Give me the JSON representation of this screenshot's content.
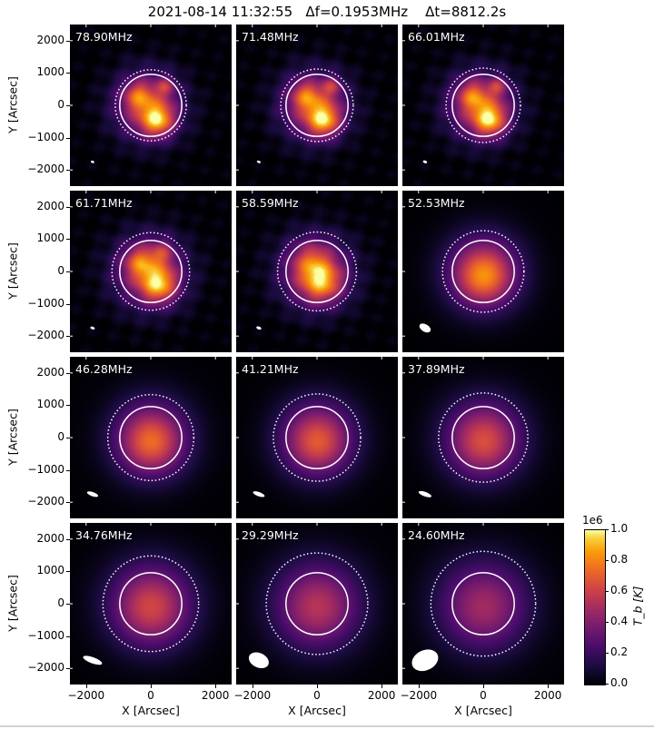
{
  "title": "2021-08-14 11:32:55   Δf=0.1953MHz    Δt=8812.2s",
  "chart_data": {
    "type": "heatmap",
    "title": "2021-08-14 11:32:55   Δf=0.1953MHz    Δt=8812.2s",
    "xlabel": "X [Arcsec]",
    "ylabel": "Y [Arcsec]",
    "xlim": [
      -2500,
      2500
    ],
    "ylim": [
      -2500,
      2500
    ],
    "xticks": [
      "−2000",
      "0",
      "2000"
    ],
    "yticks": [
      "2000",
      "1000",
      "0",
      "−1000",
      "−2000"
    ],
    "colormap": "inferno",
    "colorbar": {
      "label": "T_b [K]",
      "scale_label": "1e6",
      "ticks": [
        "0.0",
        "0.2",
        "0.4",
        "0.6",
        "0.8",
        "1.0"
      ],
      "range": [
        0,
        1000000
      ]
    },
    "solar_disk_radius_arcsec": 960,
    "panels": [
      {
        "freq": "78.90MHz",
        "dotted_r": 1100,
        "beam": [
          110,
          70,
          -20
        ],
        "halo": [
          1000,
          0.55,
          -100,
          0
        ],
        "sources": [
          [
            200,
            -450,
            350,
            0.6
          ],
          [
            -400,
            300,
            300,
            0.35
          ],
          [
            450,
            600,
            200,
            0.3
          ]
        ]
      },
      {
        "freq": "71.48MHz",
        "dotted_r": 1120,
        "beam": [
          120,
          70,
          -20
        ],
        "halo": [
          1000,
          0.55,
          -100,
          0
        ],
        "sources": [
          [
            200,
            -450,
            350,
            0.6
          ],
          [
            -350,
            300,
            300,
            0.35
          ],
          [
            450,
            600,
            200,
            0.3
          ]
        ]
      },
      {
        "freq": "66.01MHz",
        "dotted_r": 1150,
        "beam": [
          130,
          80,
          -20
        ],
        "halo": [
          1000,
          0.55,
          -100,
          0
        ],
        "sources": [
          [
            200,
            -450,
            350,
            0.6
          ],
          [
            -350,
            300,
            300,
            0.35
          ],
          [
            450,
            600,
            200,
            0.3
          ]
        ]
      },
      {
        "freq": "61.71MHz",
        "dotted_r": 1200,
        "beam": [
          140,
          80,
          -20
        ],
        "halo": [
          1050,
          0.55,
          -50,
          0
        ],
        "sources": [
          [
            250,
            -400,
            380,
            0.55
          ],
          [
            -350,
            300,
            320,
            0.35
          ],
          [
            350,
            600,
            250,
            0.25
          ]
        ]
      },
      {
        "freq": "58.59MHz",
        "dotted_r": 1220,
        "beam": [
          160,
          90,
          -20
        ],
        "halo": [
          1050,
          0.55,
          -50,
          0
        ],
        "sources": [
          [
            150,
            -350,
            420,
            0.45
          ],
          [
            -200,
            300,
            400,
            0.25
          ]
        ]
      },
      {
        "freq": "52.53MHz",
        "dotted_r": 1260,
        "beam": [
          380,
          230,
          -30
        ],
        "halo": [
          1100,
          0.55,
          0,
          0
        ],
        "sources": [
          [
            0,
            -200,
            550,
            0.3
          ]
        ]
      },
      {
        "freq": "46.28MHz",
        "dotted_r": 1330,
        "beam": [
          360,
          130,
          -20
        ],
        "halo": [
          1150,
          0.5,
          0,
          0
        ],
        "sources": [
          [
            0,
            -200,
            600,
            0.25
          ]
        ]
      },
      {
        "freq": "41.21MHz",
        "dotted_r": 1350,
        "beam": [
          380,
          130,
          -20
        ],
        "halo": [
          1150,
          0.48,
          0,
          0
        ],
        "sources": [
          [
            0,
            -200,
            600,
            0.22
          ]
        ]
      },
      {
        "freq": "37.89MHz",
        "dotted_r": 1380,
        "beam": [
          420,
          140,
          -20
        ],
        "halo": [
          1200,
          0.46,
          0,
          0
        ],
        "sources": [
          [
            0,
            -200,
            650,
            0.2
          ]
        ]
      },
      {
        "freq": "34.76MHz",
        "dotted_r": 1480,
        "beam": [
          620,
          190,
          -20
        ],
        "halo": [
          1300,
          0.45,
          0,
          0
        ],
        "sources": [
          [
            0,
            -200,
            700,
            0.18
          ]
        ]
      },
      {
        "freq": "29.29MHz",
        "dotted_r": 1570,
        "beam": [
          650,
          450,
          -25
        ],
        "halo": [
          1350,
          0.4,
          0,
          0
        ],
        "sources": [
          [
            0,
            -200,
            750,
            0.15
          ]
        ]
      },
      {
        "freq": "24.60MHz",
        "dotted_r": 1620,
        "beam": [
          850,
          620,
          25
        ],
        "halo": [
          1400,
          0.36,
          0,
          0
        ],
        "sources": [
          [
            0,
            -200,
            800,
            0.13
          ]
        ]
      }
    ]
  }
}
